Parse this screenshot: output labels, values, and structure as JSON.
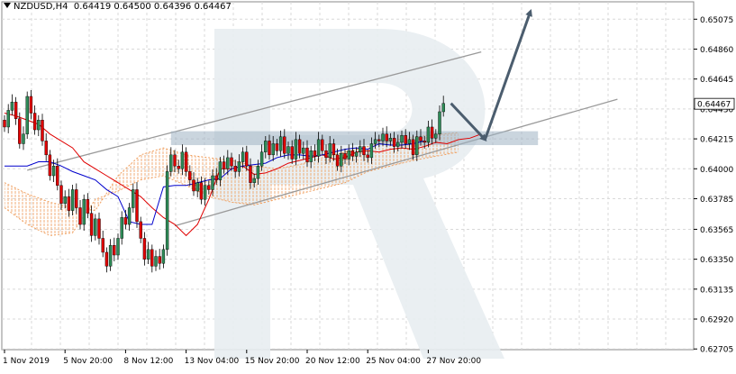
{
  "header": {
    "symbol": "NZDUSD,H4",
    "open": "0.64419",
    "high": "0.64500",
    "low": "0.64396",
    "close": "0.64467"
  },
  "watermark_icon": "broker-logo-watermark",
  "colors": {
    "bull": "#2e8b57",
    "bear": "#e00000",
    "tenkan": "#e00000",
    "kijun": "#0000cc",
    "cloud": "#f0a060",
    "channel": "#9a9a9a",
    "arrow": "#4b5d6e",
    "zone": "#9fb3c3",
    "grid": "#d9d9d9"
  },
  "chart_data": {
    "type": "candlestick",
    "title": "NZDUSD,H4",
    "ylim": [
      0.627,
      0.652
    ],
    "y_ticks": [
      "0.65075",
      "0.64860",
      "0.64645",
      "0.64430",
      "0.64215",
      "0.64000",
      "0.63785",
      "0.63565",
      "0.63350",
      "0.63135",
      "0.62920",
      "0.62705"
    ],
    "current_price": "0.64467",
    "x_labels": [
      "1 Nov 2019",
      "5 Nov 20:00",
      "8 Nov 12:00",
      "13 Nov 04:00",
      "15 Nov 20:00",
      "20 Nov 12:00",
      "25 Nov 04:00",
      "27 Nov 20:00"
    ],
    "x_label_bar_index": [
      0,
      16,
      32,
      48,
      64,
      80,
      96,
      112
    ],
    "close": [
      0.643,
      0.6442,
      0.6448,
      0.6436,
      0.6418,
      0.6425,
      0.6452,
      0.644,
      0.6428,
      0.6435,
      0.642,
      0.641,
      0.6395,
      0.6402,
      0.6388,
      0.6375,
      0.638,
      0.637,
      0.6385,
      0.6372,
      0.636,
      0.6378,
      0.6368,
      0.6352,
      0.6364,
      0.635,
      0.634,
      0.633,
      0.6345,
      0.6338,
      0.635,
      0.6365,
      0.636,
      0.6372,
      0.6385,
      0.6362,
      0.635,
      0.6335,
      0.6342,
      0.633,
      0.6337,
      0.6332,
      0.6342,
      0.6398,
      0.641,
      0.6402,
      0.64,
      0.6412,
      0.6398,
      0.6392,
      0.6384,
      0.639,
      0.6378,
      0.6388,
      0.6385,
      0.6395,
      0.6392,
      0.6405,
      0.64,
      0.6408,
      0.6402,
      0.6398,
      0.6405,
      0.6412,
      0.6402,
      0.639,
      0.6393,
      0.6402,
      0.6412,
      0.642,
      0.641,
      0.6418,
      0.6413,
      0.6423,
      0.6411,
      0.6416,
      0.6407,
      0.6421,
      0.6411,
      0.6415,
      0.6405,
      0.6413,
      0.6409,
      0.6421,
      0.6413,
      0.6408,
      0.6418,
      0.641,
      0.6402,
      0.6411,
      0.6407,
      0.6413,
      0.6409,
      0.6412,
      0.6416,
      0.641,
      0.6408,
      0.6418,
      0.6421,
      0.642,
      0.6425,
      0.642,
      0.6422,
      0.6416,
      0.6419,
      0.6424,
      0.6418,
      0.6421,
      0.641,
      0.6423,
      0.642,
      0.6419,
      0.643,
      0.6422,
      0.6425,
      0.6441,
      0.6447
    ],
    "tenkan": [
      0.644,
      0.6438,
      0.6435,
      0.6432,
      0.6425,
      0.642,
      0.6415,
      0.6405,
      0.64,
      0.6395,
      0.639,
      0.6385,
      0.638,
      0.6372,
      0.6365,
      0.636,
      0.6352,
      0.636,
      0.6378,
      0.64,
      0.64,
      0.6402,
      0.6396,
      0.6397,
      0.64,
      0.6404,
      0.6406,
      0.6408,
      0.641,
      0.6407,
      0.6408,
      0.6412,
      0.6413,
      0.6412,
      0.6414,
      0.6415,
      0.6414,
      0.6416,
      0.6419,
      0.6418,
      0.6421,
      0.6422,
      0.6425
    ],
    "tenkan_start_bar": 0,
    "kijun": [
      0.6402,
      0.6405,
      0.6405,
      0.6402,
      0.6398,
      0.6395,
      0.6392,
      0.6385,
      0.638,
      0.6362,
      0.636,
      0.636,
      0.6387,
      0.6388,
      0.6388,
      0.639,
      0.6392,
      0.6393,
      0.64,
      0.6402,
      0.6403,
      0.6404,
      0.6408,
      0.641,
      0.641,
      0.6409,
      0.641,
      0.6412,
      0.6414,
      0.6415,
      0.6414,
      0.6418,
      0.6417,
      0.6417,
      0.6418,
      0.642
    ],
    "kijun_start_bar": 0,
    "cloud_a": [
      0.639,
      0.6382,
      0.6376,
      0.6372,
      0.637,
      0.6395,
      0.641,
      0.6415,
      0.641,
      0.6408,
      0.6406,
      0.6402,
      0.64,
      0.6403,
      0.6408,
      0.6412,
      0.6416,
      0.642,
      0.6423,
      0.6426
    ],
    "cloud_b": [
      0.6372,
      0.636,
      0.6352,
      0.6354,
      0.6378,
      0.6384,
      0.6392,
      0.6395,
      0.6388,
      0.638,
      0.6376,
      0.6374,
      0.6378,
      0.6382,
      0.6386,
      0.639,
      0.6398,
      0.6402,
      0.6406,
      0.6412
    ],
    "cloud_x_bars": [
      0,
      6,
      12,
      18,
      24,
      30,
      36,
      42,
      48,
      54,
      60,
      66,
      72,
      78,
      84,
      90,
      96,
      102,
      108,
      120
    ],
    "channel_upper": {
      "from": [
        6,
        0.6399
      ],
      "to": [
        126,
        0.6484
      ]
    },
    "channel_lower": {
      "from": [
        45,
        0.6359
      ],
      "to": [
        162,
        0.645
      ]
    },
    "support_zone": {
      "from_bar": 44,
      "to_bar": 141,
      "y_low": 0.6417,
      "y_high": 0.6427
    },
    "forecast_path": [
      [
        118,
        0.6447
      ],
      [
        127,
        0.6421
      ],
      [
        139,
        0.6513
      ]
    ]
  }
}
